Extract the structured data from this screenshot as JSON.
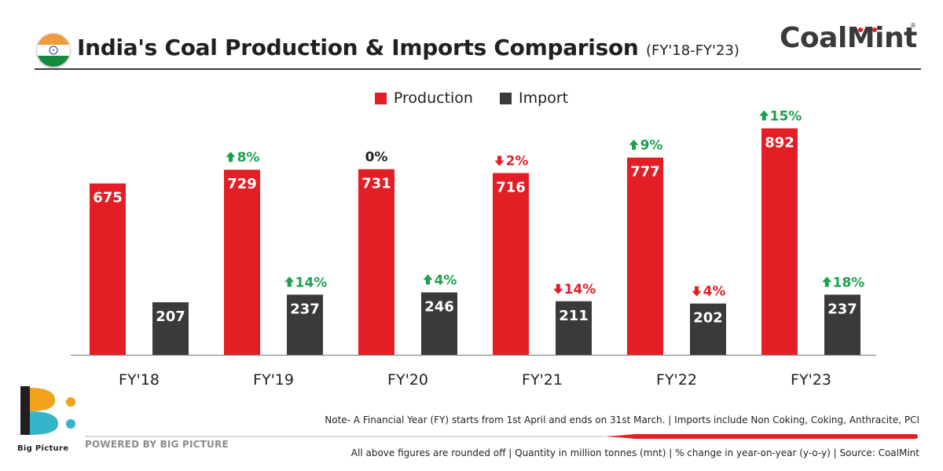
{
  "header": {
    "title": "India's Coal Production & Imports Comparison",
    "subtitle": "(FY'18-FY'23)",
    "flag_icon": "india-flag-icon",
    "brand": "CoalMint",
    "brand_reg": "®"
  },
  "colors": {
    "production": "#e31e24",
    "import": "#3a3a3a",
    "up": "#1ea04c",
    "down": "#e31e24",
    "neutral": "#231f20"
  },
  "chart_data": {
    "type": "bar",
    "title": "India's Coal Production & Imports Comparison",
    "categories": [
      "FY'18",
      "FY'19",
      "FY'20",
      "FY'21",
      "FY'22",
      "FY'23"
    ],
    "series": [
      {
        "name": "Production",
        "values": [
          675,
          729,
          731,
          716,
          777,
          892
        ],
        "labels": [
          "675",
          "729",
          "731",
          "716",
          "777",
          "892"
        ],
        "changes": [
          null,
          {
            "text": "8%",
            "dir": "up"
          },
          {
            "text": "0%",
            "dir": "none"
          },
          {
            "text": "2%",
            "dir": "down"
          },
          {
            "text": "9%",
            "dir": "up"
          },
          {
            "text": "15%",
            "dir": "up"
          }
        ]
      },
      {
        "name": "Import",
        "values": [
          207,
          237,
          246,
          211,
          202,
          237
        ],
        "labels": [
          "207",
          "237",
          "246",
          "211",
          "202",
          "237"
        ],
        "changes": [
          null,
          {
            "text": "14%",
            "dir": "up"
          },
          {
            "text": "4%",
            "dir": "up"
          },
          {
            "text": "14%",
            "dir": "down"
          },
          {
            "text": "4%",
            "dir": "down"
          },
          {
            "text": "18%",
            "dir": "up"
          }
        ]
      }
    ],
    "xlabel": "",
    "ylabel": "",
    "legend_position": "top-center",
    "grid": false,
    "axis_line": true
  },
  "footer": {
    "note": "Note- A Financial Year (FY) starts from 1st April and ends on 31st March. | Imports include Non Coking, Coking, Anthracite, PCI",
    "source": "All above figures are rounded off | Quantity in million tonnes (mnt) | % change in year-on-year (y-o-y) | Source: CoalMint",
    "powered_by": "POWERED BY BIG PICTURE",
    "big_picture_label": "Big Picture"
  }
}
